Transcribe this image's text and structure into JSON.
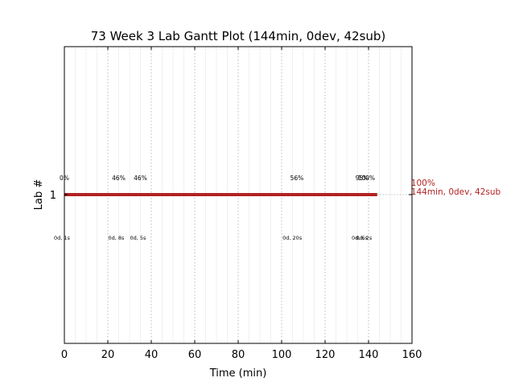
{
  "chart_data": {
    "type": "gantt",
    "title": "73 Week 3 Lab Gantt Plot (144min, 0dev, 42sub)",
    "xlabel": "Time (min)",
    "ylabel": "Lab #",
    "xlim": [
      0,
      160
    ],
    "x_ticks": [
      0,
      20,
      40,
      60,
      80,
      100,
      120,
      140,
      160
    ],
    "y_ticks": [
      1
    ],
    "grid": true,
    "colors": {
      "bar": "#b22222",
      "end_label": "#b22222",
      "grid": "#aaaaaa",
      "minor_grid": "#e6e6e6"
    },
    "series": [
      {
        "lab": 1,
        "start": 0,
        "end": 144,
        "end_pct_label": "100%",
        "end_summary_label": "144min, 0dev, 42sub",
        "progress_annotations": [
          {
            "x": 0,
            "label": "0%"
          },
          {
            "x": 25,
            "label": "46%"
          },
          {
            "x": 35,
            "label": "46%"
          },
          {
            "x": 107,
            "label": "56%"
          },
          {
            "x": 137,
            "label": "95%"
          },
          {
            "x": 139,
            "label": "100%"
          }
        ],
        "dev_annotations": [
          {
            "x": 0,
            "label": "0d, 1s"
          },
          {
            "x": 25,
            "label": "0d, 8s"
          },
          {
            "x": 35,
            "label": "0d, 5s"
          },
          {
            "x": 106,
            "label": "0d, 20s"
          },
          {
            "x": 137,
            "label": "0d, 6s"
          },
          {
            "x": 139,
            "label": "0d, 2s"
          }
        ]
      }
    ]
  }
}
